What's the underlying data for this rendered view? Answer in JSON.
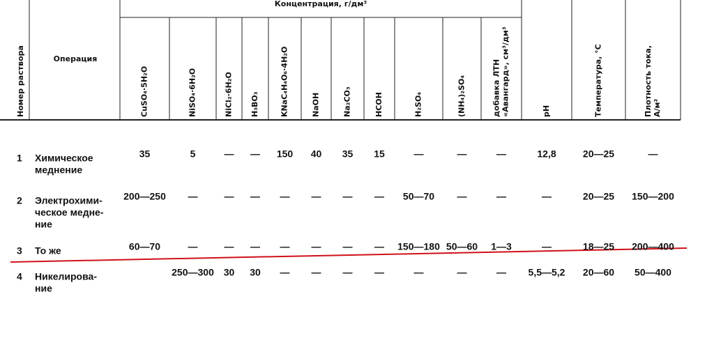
{
  "table": {
    "group_header": "Концентрация, г/дм³",
    "number_header": [
      "Номер раствора"
    ],
    "operation_header": "Операция",
    "columns": [
      [
        "CuSO₄·5H₂O"
      ],
      [
        "NiSO₄·6H₂O"
      ],
      [
        "NiCl₂·6H₂O"
      ],
      [
        "H₃BO₃"
      ],
      [
        "KNaC₄H₄O₆·4H₂O"
      ],
      [
        "NaOH"
      ],
      [
        "Na₂CO₃"
      ],
      [
        "HCOH"
      ],
      [
        "H₂SO₄"
      ],
      [
        "(NH₄)₂SO₄"
      ],
      [
        "добавка ЛТН",
        "«Авангард», см³/дм³"
      ],
      [
        "pH"
      ],
      [
        "Температура, °С"
      ],
      [
        "Плотность тока,",
        "А/м²"
      ]
    ],
    "rows": [
      {
        "number": "1",
        "operation": [
          "Химическое",
          "меднение"
        ],
        "values": [
          "35",
          "5",
          "—",
          "—",
          "150",
          "40",
          "35",
          "15",
          "—",
          "—",
          "—",
          "12,8",
          "20—25",
          "—"
        ]
      },
      {
        "number": "2",
        "operation": [
          "Электрохими-",
          "ческое медне-",
          "ние"
        ],
        "values": [
          "200—250",
          "—",
          "—",
          "—",
          "—",
          "—",
          "—",
          "—",
          "50—70",
          "—",
          "—",
          "—",
          "20—25",
          "150—200"
        ]
      },
      {
        "number": "3",
        "operation": [
          "То же"
        ],
        "values": [
          "60—70",
          "—",
          "—",
          "—",
          "—",
          "—",
          "—",
          "—",
          "150—180",
          "50—60",
          "1—3",
          "—",
          "18—25",
          "200—400"
        ]
      },
      {
        "number": "4",
        "operation": [
          "Никелирова-",
          "ние"
        ],
        "values": [
          null,
          "250—300",
          "30",
          "30",
          "—",
          "—",
          "—",
          "—",
          "—",
          "—",
          "—",
          "5,5—5,2",
          "20—60",
          "50—400"
        ]
      }
    ]
  }
}
